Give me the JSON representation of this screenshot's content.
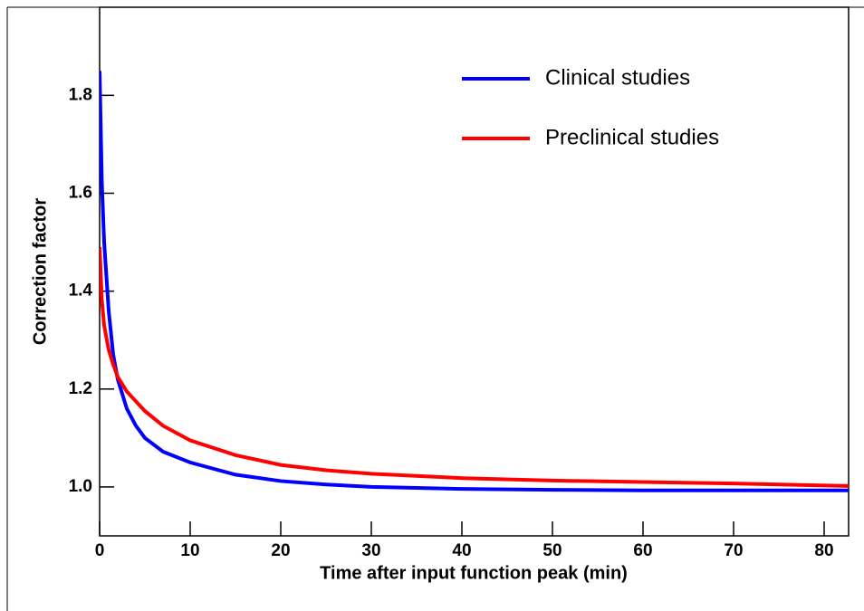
{
  "chart_data": {
    "type": "line",
    "xlabel": "Time after input function peak (min)",
    "ylabel": "Correction factor",
    "x": [
      0,
      0.25,
      0.5,
      1,
      1.5,
      2,
      3,
      4,
      5,
      7,
      10,
      15,
      20,
      25,
      30,
      40,
      50,
      60,
      70,
      82.7
    ],
    "series": [
      {
        "name": "Clinical studies",
        "color": "#0000ff",
        "values": [
          1.85,
          1.62,
          1.5,
          1.36,
          1.27,
          1.22,
          1.16,
          1.125,
          1.1,
          1.072,
          1.05,
          1.025,
          1.012,
          1.005,
          1.0,
          0.996,
          0.994,
          0.993,
          0.993,
          0.993
        ]
      },
      {
        "name": "Preclinical studies",
        "color": "#ff0000",
        "values": [
          1.49,
          1.38,
          1.33,
          1.28,
          1.25,
          1.225,
          1.195,
          1.175,
          1.155,
          1.125,
          1.095,
          1.065,
          1.045,
          1.034,
          1.027,
          1.018,
          1.013,
          1.01,
          1.007,
          1.002
        ]
      }
    ],
    "xlim": [
      0,
      82.7
    ],
    "xticks": [
      0,
      10,
      20,
      30,
      40,
      50,
      60,
      70,
      80
    ],
    "ylim": [
      0.9,
      1.98
    ],
    "yticks": [
      {
        "value": 1.0,
        "label": "1.0"
      },
      1.2,
      1.4,
      1.6,
      1.8
    ],
    "legend": "top-right"
  }
}
